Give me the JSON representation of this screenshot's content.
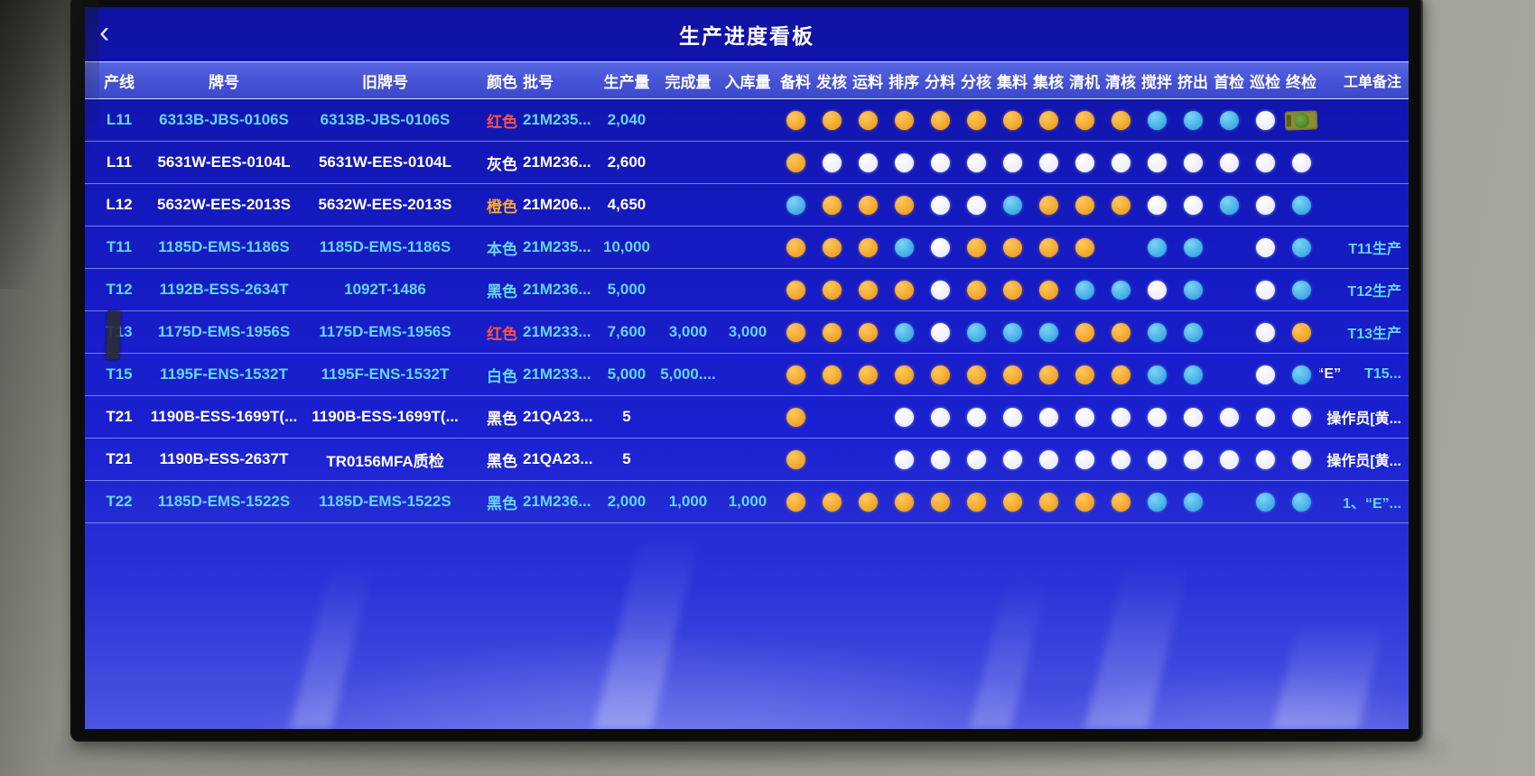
{
  "titlebar": {
    "title": "生产进度看板",
    "back_glyph": "‹"
  },
  "header": {
    "main": [
      "产线",
      "牌号",
      "旧牌号",
      "颜色",
      "批号",
      "生产量",
      "完成量",
      "入库量"
    ],
    "status": [
      "备料",
      "发核",
      "运料",
      "排序",
      "分料",
      "分核",
      "集料",
      "集核",
      "清机",
      "清核",
      "搅拌",
      "挤出",
      "首检",
      "巡检",
      "终检"
    ],
    "remark": "工单备注"
  },
  "colors": {
    "screen_blue": "#1a20cf",
    "header_band": "#4552d4",
    "dot_orange": "#f0a426",
    "dot_white": "#f2f5ff",
    "dot_cyan": "#3aa9e4",
    "text_cyan": "#63d6f6",
    "text_white": "#ffffff",
    "text_red": "#ff5244",
    "text_orange": "#f6a832"
  },
  "rows": [
    {
      "line": "L11",
      "brand": "6313B-JBS-0106S",
      "old_brand": "6313B-JBS-0106S",
      "color_name": "红色",
      "color_class": "red",
      "batch": "21M235...",
      "production": "2,040",
      "completed": "",
      "stocked": "",
      "row_style": "cyan",
      "dots": [
        "o",
        "o",
        "o",
        "o",
        "o",
        "o",
        "o",
        "o",
        "o",
        "o",
        "c",
        "c",
        "c",
        "w",
        "seal"
      ],
      "remark_pre": "",
      "remark": ""
    },
    {
      "line": "L11",
      "brand": "5631W-EES-0104L",
      "old_brand": "5631W-EES-0104L",
      "color_name": "灰色",
      "color_class": "",
      "batch": "21M236...",
      "production": "2,600",
      "completed": "",
      "stocked": "",
      "row_style": "white",
      "dots": [
        "o",
        "w",
        "w",
        "w",
        "w",
        "w",
        "w",
        "w",
        "w",
        "w",
        "w",
        "w",
        "w",
        "w",
        "w"
      ],
      "remark_pre": "",
      "remark": ""
    },
    {
      "line": "L12",
      "brand": "5632W-EES-2013S",
      "old_brand": "5632W-EES-2013S",
      "color_name": "橙色",
      "color_class": "orange",
      "batch": "21M206...",
      "production": "4,650",
      "completed": "",
      "stocked": "",
      "row_style": "white",
      "dots": [
        "c",
        "o",
        "o",
        "o",
        "w",
        "w",
        "c",
        "o",
        "o",
        "o",
        "w",
        "w",
        "c",
        "w",
        "c"
      ],
      "remark_pre": "",
      "remark": ""
    },
    {
      "line": "T11",
      "brand": "1185D-EMS-1186S",
      "old_brand": "1185D-EMS-1186S",
      "color_name": "本色",
      "color_class": "",
      "batch": "21M235...",
      "production": "10,000",
      "completed": "",
      "stocked": "",
      "row_style": "cyan",
      "dots": [
        "o",
        "o",
        "o",
        "c",
        "w",
        "o",
        "o",
        "o",
        "o",
        "",
        "c",
        "c",
        "",
        "w",
        "c"
      ],
      "remark_pre": "",
      "remark": "T11生产"
    },
    {
      "line": "T12",
      "brand": "1192B-ESS-2634T",
      "old_brand": "1092T-1486",
      "color_name": "黑色",
      "color_class": "",
      "batch": "21M236...",
      "production": "5,000",
      "completed": "",
      "stocked": "",
      "row_style": "cyan",
      "dots": [
        "o",
        "o",
        "o",
        "o",
        "w",
        "o",
        "o",
        "o",
        "c",
        "c",
        "w",
        "c",
        "",
        "w",
        "c"
      ],
      "remark_pre": "",
      "remark": "T12生产"
    },
    {
      "line": "T13",
      "brand": "1175D-EMS-1956S",
      "old_brand": "1175D-EMS-1956S",
      "color_name": "红色",
      "color_class": "red",
      "batch": "21M233...",
      "production": "7,600",
      "completed": "3,000",
      "stocked": "3,000",
      "row_style": "cyan",
      "dots": [
        "o",
        "o",
        "o",
        "c",
        "w",
        "c",
        "c",
        "c",
        "o",
        "o",
        "c",
        "c",
        "",
        "w",
        "o"
      ],
      "remark_pre": "",
      "remark": "T13生产"
    },
    {
      "line": "T15",
      "brand": "1195F-ENS-1532T",
      "old_brand": "1195F-ENS-1532T",
      "color_name": "白色",
      "color_class": "",
      "batch": "21M233...",
      "production": "5,000",
      "completed": "5,000....",
      "stocked": "",
      "row_style": "cyan",
      "dots": [
        "o",
        "o",
        "o",
        "o",
        "o",
        "o",
        "o",
        "o",
        "o",
        "o",
        "c",
        "c",
        "",
        "w",
        "c"
      ],
      "remark_pre": "“E”",
      "remark": "T15..."
    },
    {
      "line": "T21",
      "brand": "1190B-ESS-1699T(...",
      "old_brand": "1190B-ESS-1699T(...",
      "color_name": "黑色",
      "color_class": "",
      "batch": "21QA23...",
      "production": "5",
      "completed": "",
      "stocked": "",
      "row_style": "white",
      "dots": [
        "o",
        "",
        "",
        "w",
        "w",
        "w",
        "w",
        "w",
        "w",
        "w",
        "w",
        "w",
        "w",
        "w",
        "w"
      ],
      "remark_pre": "",
      "remark": "操作员[黄..."
    },
    {
      "line": "T21",
      "brand": "1190B-ESS-2637T",
      "old_brand": "TR0156MFA质检",
      "color_name": "黑色",
      "color_class": "",
      "batch": "21QA23...",
      "production": "5",
      "completed": "",
      "stocked": "",
      "row_style": "white",
      "dots": [
        "o",
        "",
        "",
        "w",
        "w",
        "w",
        "w",
        "w",
        "w",
        "w",
        "w",
        "w",
        "w",
        "w",
        "w"
      ],
      "remark_pre": "",
      "remark": "操作员[黄..."
    },
    {
      "line": "T22",
      "brand": "1185D-EMS-1522S",
      "old_brand": "1185D-EMS-1522S",
      "color_name": "黑色",
      "color_class": "",
      "batch": "21M236...",
      "production": "2,000",
      "completed": "1,000",
      "stocked": "1,000",
      "row_style": "cyan",
      "dots": [
        "o",
        "o",
        "o",
        "o",
        "o",
        "o",
        "o",
        "o",
        "o",
        "o",
        "c",
        "c",
        "",
        "c",
        "c"
      ],
      "remark_pre": "",
      "remark": "1、“E”..."
    }
  ]
}
